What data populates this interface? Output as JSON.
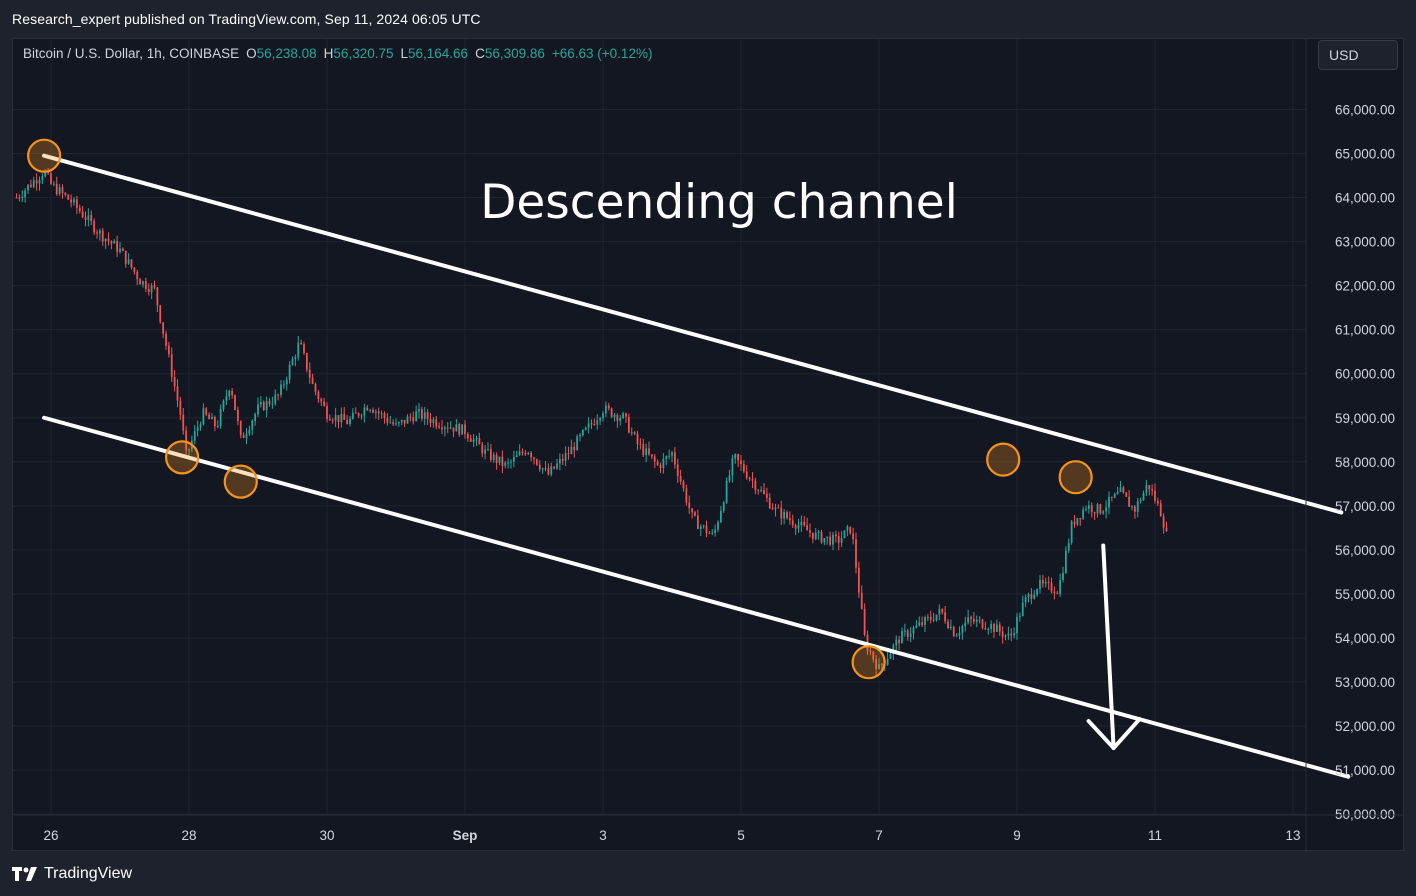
{
  "header": {
    "publish_text": "Research_expert published on TradingView.com, Sep 11, 2024 06:05 UTC"
  },
  "symbol": {
    "name": "Bitcoin / U.S. Dollar, 1h, COINBASE",
    "open_label": "O",
    "open": "56,238.08",
    "high_label": "H",
    "high": "56,320.75",
    "low_label": "L",
    "low": "56,164.66",
    "close_label": "C",
    "close": "56,309.86",
    "change": "+66.63 (+0.12%)"
  },
  "currency_button": {
    "label": "USD"
  },
  "footer": {
    "brand": "TradingView"
  },
  "colors": {
    "up": "#26a69a",
    "down": "#ef5350",
    "background": "#131722",
    "annotation": "#ffffff",
    "marker": "#f7931a"
  },
  "chart_data": {
    "type": "candlestick",
    "title": "Descending channel",
    "interval": "1h",
    "x_ticks": [
      "26",
      "28",
      "30",
      "Sep",
      "3",
      "5",
      "7",
      "9",
      "11",
      "13"
    ],
    "x_tick_days": [
      26,
      28,
      30,
      32,
      34,
      36,
      38,
      40,
      42,
      44
    ],
    "y_ticks": [
      "50,000.00",
      "51,000.00",
      "52,000.00",
      "53,000.00",
      "54,000.00",
      "55,000.00",
      "56,000.00",
      "57,000.00",
      "58,000.00",
      "59,000.00",
      "60,000.00",
      "61,000.00",
      "62,000.00",
      "63,000.00",
      "64,000.00",
      "65,000.00",
      "66,000.00"
    ],
    "y_tick_values": [
      50000,
      51000,
      52000,
      53000,
      54000,
      55000,
      56000,
      57000,
      58000,
      59000,
      60000,
      61000,
      62000,
      63000,
      64000,
      65000,
      66000
    ],
    "ylim": [
      49980,
      67600
    ],
    "price_path_days": [
      25.5,
      25.9,
      26.0,
      26.3,
      26.7,
      27.0,
      27.3,
      27.5,
      27.9,
      27.95,
      28.2,
      28.4,
      28.6,
      28.75,
      29.0,
      29.3,
      29.6,
      29.8,
      30.0,
      30.3,
      30.6,
      31.0,
      31.3,
      31.6,
      32.0,
      32.3,
      32.6,
      32.9,
      33.2,
      33.5,
      33.8,
      34.0,
      34.3,
      34.5,
      34.8,
      35.0,
      35.3,
      35.6,
      35.9,
      36.2,
      36.5,
      36.8,
      37.1,
      37.4,
      37.6,
      37.8,
      38.0,
      38.3,
      38.6,
      38.9,
      39.1,
      39.3,
      39.6,
      39.9,
      40.1,
      40.3,
      40.6,
      40.8,
      41.0,
      41.2,
      41.5,
      41.7,
      41.9,
      42.1,
      42.2
    ],
    "price_path_values": [
      64000,
      64600,
      64300,
      63900,
      63200,
      62800,
      62100,
      61900,
      58900,
      58100,
      59100,
      58800,
      59800,
      58500,
      59200,
      59500,
      60700,
      59700,
      59100,
      58900,
      59300,
      58800,
      59100,
      58900,
      58700,
      58200,
      57900,
      58300,
      57700,
      58200,
      58800,
      59200,
      59000,
      58400,
      57900,
      58200,
      56700,
      56300,
      58100,
      57500,
      56900,
      56600,
      56300,
      56200,
      56500,
      53900,
      53300,
      54000,
      54300,
      54600,
      54100,
      54400,
      54300,
      54000,
      54800,
      55200,
      55100,
      56600,
      57000,
      56900,
      57300,
      56900,
      57500,
      56800,
      56100
    ],
    "channel_upper": {
      "start": [
        25.9,
        64950
      ],
      "end": [
        44.7,
        56850
      ]
    },
    "channel_lower": {
      "start": [
        25.9,
        59000
      ],
      "end": [
        44.8,
        50850
      ]
    },
    "touch_points": [
      [
        25.9,
        64950
      ],
      [
        27.9,
        58100
      ],
      [
        28.75,
        57550
      ],
      [
        37.85,
        53450
      ],
      [
        39.8,
        58050
      ],
      [
        40.85,
        57650
      ]
    ],
    "projection_arrow": {
      "start": [
        41.25,
        56100
      ],
      "end": [
        41.4,
        51500
      ]
    }
  }
}
